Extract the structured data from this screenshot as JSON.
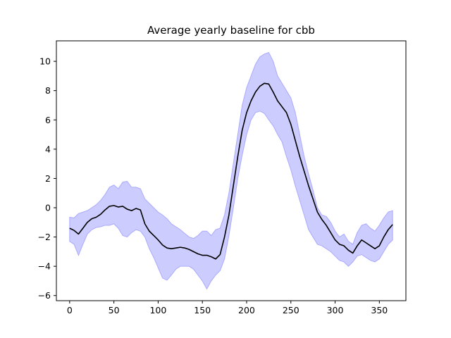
{
  "chart_data": {
    "type": "area",
    "title": "Average yearly baseline for cbb",
    "xlabel": "",
    "ylabel": "",
    "xlim": [
      -15,
      380
    ],
    "ylim": [
      -6.35,
      11.4
    ],
    "xticks": [
      0,
      50,
      100,
      150,
      200,
      250,
      300,
      350
    ],
    "yticks": [
      -6,
      -4,
      -2,
      0,
      2,
      4,
      6,
      8,
      10
    ],
    "grid": false,
    "colors": {
      "mean_line": "#000000",
      "band_fill": "#ccccff",
      "band_edge": "#aaaaff"
    },
    "series": [
      {
        "role": "mean",
        "x": [
          0,
          5,
          10,
          15,
          20,
          25,
          30,
          35,
          40,
          45,
          50,
          55,
          60,
          65,
          70,
          75,
          80,
          85,
          90,
          95,
          100,
          105,
          110,
          115,
          120,
          125,
          130,
          135,
          140,
          145,
          150,
          155,
          160,
          165,
          170,
          175,
          180,
          185,
          190,
          195,
          200,
          205,
          210,
          215,
          220,
          225,
          230,
          235,
          240,
          245,
          250,
          255,
          260,
          265,
          270,
          275,
          280,
          285,
          290,
          295,
          300,
          305,
          310,
          315,
          320,
          325,
          330,
          335,
          340,
          345,
          350,
          355,
          360,
          365
        ],
        "y": [
          -1.4,
          -1.55,
          -1.8,
          -1.4,
          -1.0,
          -0.75,
          -0.65,
          -0.45,
          -0.15,
          0.1,
          0.15,
          0.05,
          0.1,
          -0.1,
          -0.2,
          -0.05,
          -0.15,
          -1.1,
          -1.6,
          -1.9,
          -2.2,
          -2.55,
          -2.75,
          -2.8,
          -2.75,
          -2.7,
          -2.75,
          -2.85,
          -3.0,
          -3.15,
          -3.25,
          -3.25,
          -3.35,
          -3.5,
          -3.2,
          -2.0,
          -0.5,
          1.5,
          3.5,
          5.3,
          6.5,
          7.3,
          7.9,
          8.3,
          8.5,
          8.45,
          7.9,
          7.3,
          6.9,
          6.5,
          5.7,
          4.6,
          3.5,
          2.5,
          1.5,
          0.6,
          -0.3,
          -0.8,
          -1.2,
          -1.7,
          -2.2,
          -2.5,
          -2.6,
          -2.9,
          -3.1,
          -2.6,
          -2.2,
          -2.4,
          -2.6,
          -2.8,
          -2.6,
          -2.0,
          -1.5,
          -1.15
        ]
      },
      {
        "role": "band-lower",
        "x": [
          0,
          5,
          10,
          15,
          20,
          25,
          30,
          35,
          40,
          45,
          50,
          55,
          60,
          65,
          70,
          75,
          80,
          85,
          90,
          95,
          100,
          105,
          110,
          115,
          120,
          125,
          130,
          135,
          140,
          145,
          150,
          155,
          160,
          165,
          170,
          175,
          180,
          185,
          190,
          195,
          200,
          205,
          210,
          215,
          220,
          225,
          230,
          235,
          240,
          245,
          250,
          255,
          260,
          265,
          270,
          275,
          280,
          285,
          290,
          295,
          300,
          305,
          310,
          315,
          320,
          325,
          330,
          335,
          340,
          345,
          350,
          355,
          360,
          365
        ],
        "y": [
          -2.3,
          -2.5,
          -3.25,
          -2.5,
          -1.8,
          -1.5,
          -1.35,
          -1.3,
          -1.2,
          -1.2,
          -1.1,
          -1.4,
          -1.9,
          -2.0,
          -1.7,
          -1.5,
          -1.6,
          -2.0,
          -2.8,
          -3.4,
          -4.1,
          -4.8,
          -4.95,
          -4.6,
          -4.2,
          -4.0,
          -4.0,
          -4.0,
          -4.2,
          -4.6,
          -5.0,
          -5.55,
          -5.0,
          -4.6,
          -4.3,
          -3.5,
          -1.9,
          0.0,
          2.0,
          3.6,
          5.0,
          6.0,
          6.5,
          6.6,
          6.45,
          6.0,
          5.6,
          5.0,
          4.5,
          3.5,
          2.6,
          1.5,
          0.5,
          -0.5,
          -1.5,
          -2.0,
          -2.5,
          -2.6,
          -2.8,
          -3.0,
          -3.3,
          -3.6,
          -3.7,
          -4.0,
          -3.7,
          -3.3,
          -3.2,
          -3.4,
          -3.6,
          -3.7,
          -3.5,
          -3.0,
          -2.5,
          -2.2
        ]
      },
      {
        "role": "band-upper",
        "x": [
          0,
          5,
          10,
          15,
          20,
          25,
          30,
          35,
          40,
          45,
          50,
          55,
          60,
          65,
          70,
          75,
          80,
          85,
          90,
          95,
          100,
          105,
          110,
          115,
          120,
          125,
          130,
          135,
          140,
          145,
          150,
          155,
          160,
          165,
          170,
          175,
          180,
          185,
          190,
          195,
          200,
          205,
          210,
          215,
          220,
          225,
          230,
          235,
          240,
          245,
          250,
          255,
          260,
          265,
          270,
          275,
          280,
          285,
          290,
          295,
          300,
          305,
          310,
          315,
          320,
          325,
          330,
          335,
          340,
          345,
          350,
          355,
          360,
          365
        ],
        "y": [
          -0.65,
          -0.7,
          -0.4,
          -0.3,
          -0.2,
          0.0,
          0.2,
          0.5,
          0.9,
          1.4,
          1.55,
          1.3,
          1.75,
          1.8,
          1.4,
          1.4,
          1.3,
          0.6,
          0.3,
          0.0,
          -0.3,
          -0.5,
          -0.75,
          -1.1,
          -1.3,
          -1.5,
          -1.75,
          -2.0,
          -2.1,
          -1.9,
          -1.6,
          -1.6,
          -1.9,
          -1.5,
          -1.4,
          -0.5,
          1.0,
          3.0,
          5.0,
          7.0,
          8.2,
          9.0,
          9.8,
          10.3,
          10.5,
          10.6,
          10.0,
          9.0,
          8.5,
          8.0,
          7.5,
          6.5,
          5.0,
          3.5,
          2.3,
          1.2,
          0.0,
          -0.5,
          -0.6,
          -1.0,
          -1.6,
          -2.0,
          -1.8,
          -2.3,
          -2.5,
          -1.7,
          -1.2,
          -1.1,
          -1.4,
          -1.6,
          -1.2,
          -0.7,
          -0.3,
          -0.2
        ]
      }
    ]
  }
}
